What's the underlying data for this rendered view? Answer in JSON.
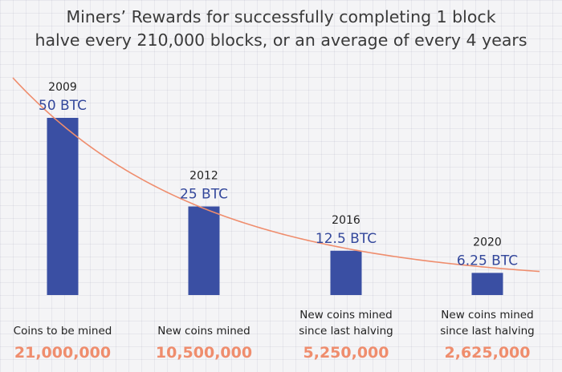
{
  "chart_data": {
    "type": "bar",
    "title_lines": [
      "Miners’ Rewards for successfully completing 1 block",
      "halve every 210,000 blocks, or an average of every 4 years"
    ],
    "categories": [
      "2009",
      "2012",
      "2016",
      "2020"
    ],
    "values": [
      50,
      25,
      12.5,
      6.25
    ],
    "value_labels": [
      "50 BTC",
      "25 BTC",
      "12.5 BTC",
      "6.25 BTC"
    ],
    "unit": "BTC",
    "descriptions": [
      [
        "Coins to be mined"
      ],
      [
        "New coins mined"
      ],
      [
        "New coins mined",
        "since last halving"
      ],
      [
        "New coins mined",
        "since last halving"
      ]
    ],
    "coins": [
      "21,000,000",
      "10,500,000",
      "5,250,000",
      "2,625,000"
    ],
    "trend_line": "exponential decay",
    "grid": true,
    "colors": {
      "bar": "#3a4fa3",
      "reward_text": "#33479b",
      "coins_text": "#ef8d6d",
      "trend_line": "#ef8d6d"
    }
  }
}
